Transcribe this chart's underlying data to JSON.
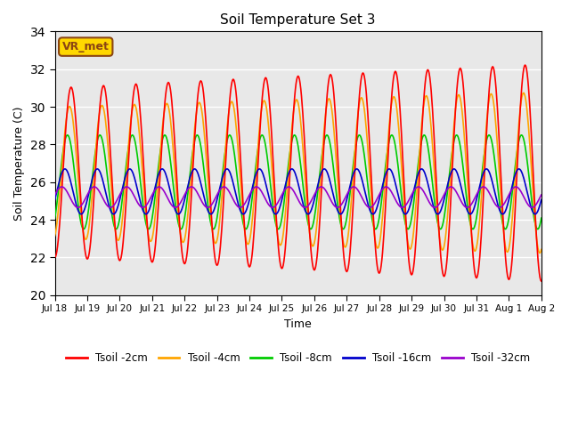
{
  "title": "Soil Temperature Set 3",
  "xlabel": "Time",
  "ylabel": "Soil Temperature (C)",
  "ylim": [
    20,
    34
  ],
  "yticks": [
    20,
    22,
    24,
    26,
    28,
    30,
    32,
    34
  ],
  "annotation_text": "VR_met",
  "annotation_color": "#8B4513",
  "annotation_bg": "#FFD700",
  "bg_color": "#E8E8E8",
  "colors": {
    "2cm": "#FF0000",
    "4cm": "#FFA500",
    "8cm": "#00CC00",
    "16cm": "#0000CC",
    "32cm": "#9900CC"
  },
  "legend_labels": [
    "Tsoil -2cm",
    "Tsoil -4cm",
    "Tsoil -8cm",
    "Tsoil -16cm",
    "Tsoil -32cm"
  ],
  "x_tick_labels": [
    "Jul 18",
    "Jul 19",
    "Jul 20",
    "Jul 21",
    "Jul 22",
    "Jul 23",
    "Jul 24",
    "Jul 25",
    "Jul 26",
    "Jul 27",
    "Jul 28",
    "Jul 29",
    "Jul 30",
    "Jul 31",
    "Aug 1",
    "Aug 2"
  ],
  "n_days": 15,
  "amplitude_2cm": 4.5,
  "amplitude_4cm": 3.5,
  "amplitude_8cm": 2.5,
  "amplitude_16cm": 1.2,
  "amplitude_32cm": 0.55,
  "base_2cm": 26.5,
  "base_4cm": 26.5,
  "base_8cm": 26.0,
  "base_16cm": 25.5,
  "base_32cm": 25.2,
  "phase_2cm": 0.0,
  "phase_4cm": 0.3,
  "phase_8cm": 0.7,
  "phase_16cm": 1.2,
  "phase_32cm": 1.8
}
